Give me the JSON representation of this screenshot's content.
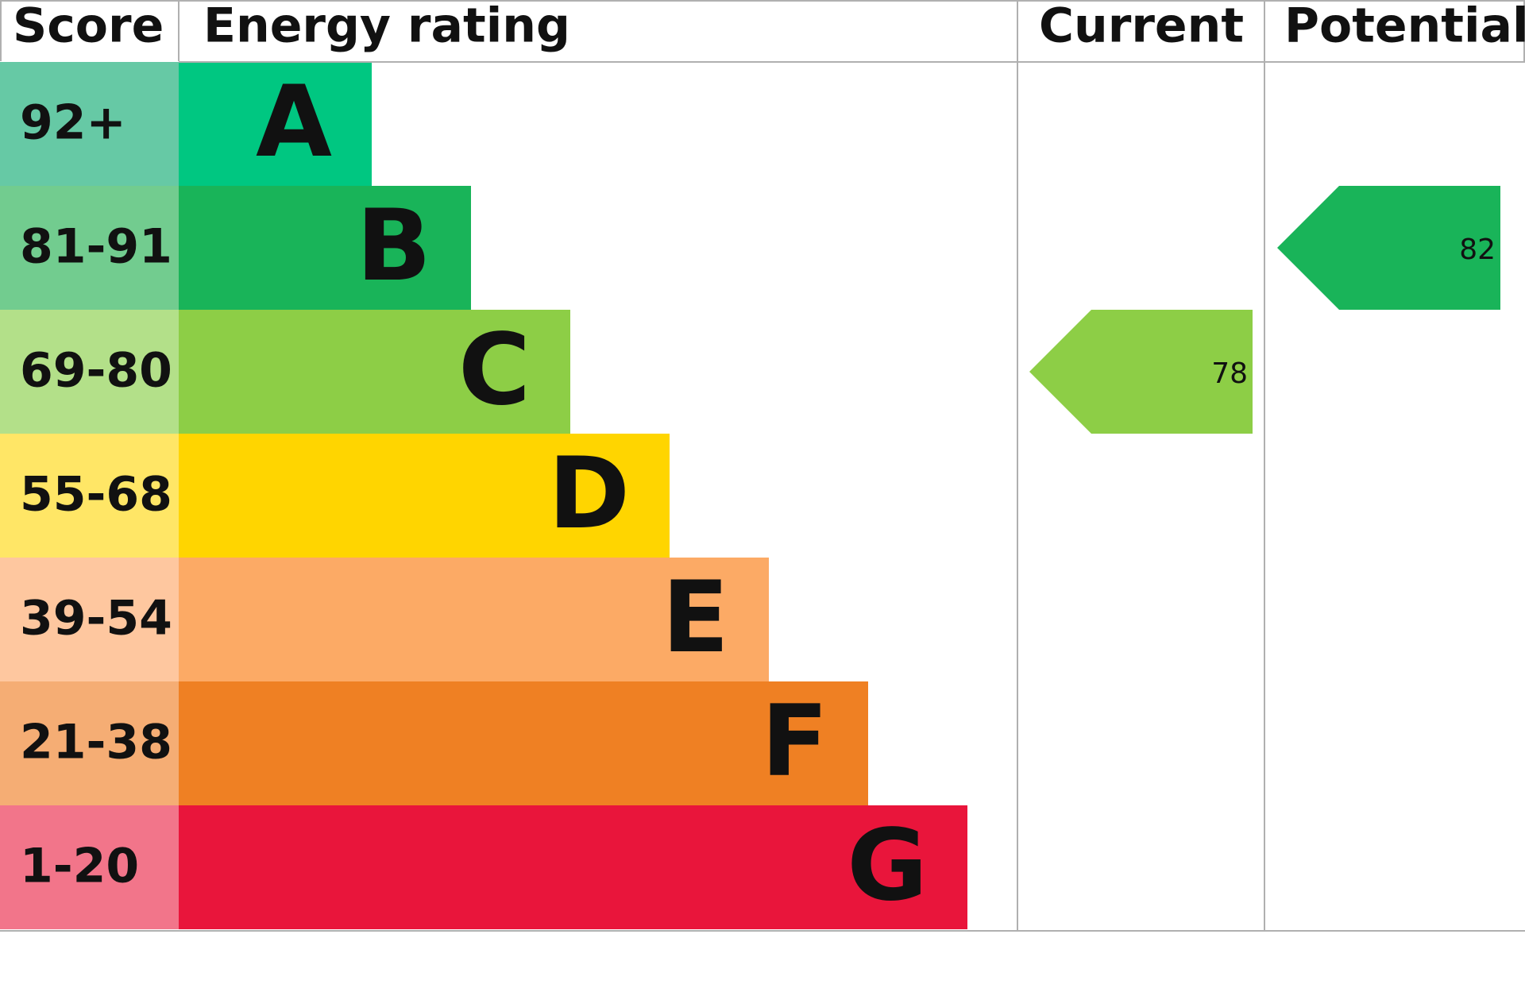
{
  "chart_data": {
    "type": "epc",
    "headers": {
      "score": "Score",
      "rating": "Energy rating",
      "current": "Current",
      "potential": "Potential"
    },
    "bands": [
      {
        "score": "92+",
        "letter": "A",
        "color": "#00c781",
        "light": "#66c9a5"
      },
      {
        "score": "81-91",
        "letter": "B",
        "color": "#19b459",
        "light": "#72cc8f"
      },
      {
        "score": "69-80",
        "letter": "C",
        "color": "#8dce46",
        "light": "#b3e089"
      },
      {
        "score": "55-68",
        "letter": "D",
        "color": "#ffd500",
        "light": "#ffe666"
      },
      {
        "score": "39-54",
        "letter": "E",
        "color": "#fcaa65",
        "light": "#fec79f"
      },
      {
        "score": "21-38",
        "letter": "F",
        "color": "#ef8023",
        "light": "#f5ad74"
      },
      {
        "score": "1-20",
        "letter": "G",
        "color": "#e9153b",
        "light": "#f2758a"
      }
    ],
    "current": 78,
    "potential": 82
  }
}
